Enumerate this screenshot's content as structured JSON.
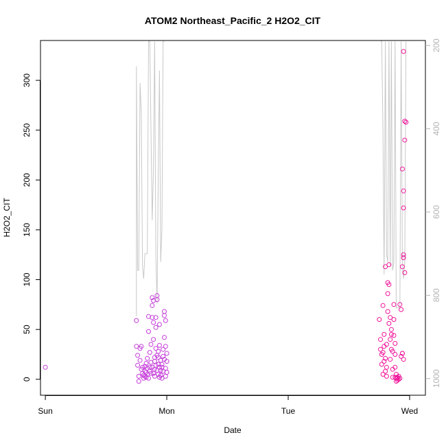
{
  "chart_data": {
    "type": "scatter",
    "title": "ATOM2 Northeast_Pacific_2 H2O2_CIT",
    "xlabel": "Date",
    "ylabel": "H2O2_CIT",
    "x_ticks": [
      {
        "label": "Sun",
        "day": 0
      },
      {
        "label": "Mon",
        "day": 1
      },
      {
        "label": "Tue",
        "day": 2
      },
      {
        "label": "Wed",
        "day": 3
      }
    ],
    "xlim": [
      -0.04,
      3.13
    ],
    "ylim": [
      -16,
      340
    ],
    "y_ticks": [
      0,
      50,
      100,
      150,
      200,
      250,
      300
    ],
    "secondary_axis": {
      "label": "",
      "ticks": [
        200,
        400,
        600,
        800,
        1000
      ],
      "ylim_reversed": [
        1040,
        188
      ],
      "color": "#b3b3b3"
    },
    "colors": {
      "early_points": "#c43bd9",
      "late_points": "#f0149a",
      "profile_line": "#c8c8c8",
      "axis": "#000000",
      "secondary_axis": "#b3b3b3"
    },
    "series": [
      {
        "points": [
          [
            0.0,
            12
          ],
          [
            0.75,
            59
          ],
          [
            0.75,
            33
          ],
          [
            0.76,
            24
          ],
          [
            0.76,
            14
          ],
          [
            0.77,
            3
          ],
          [
            0.77,
            -2
          ],
          [
            0.78,
            19
          ],
          [
            0.78,
            31
          ],
          [
            0.79,
            33
          ],
          [
            0.79,
            10
          ],
          [
            0.8,
            12
          ],
          [
            0.8,
            6
          ],
          [
            0.81,
            1
          ],
          [
            0.81,
            4
          ],
          [
            0.82,
            13
          ],
          [
            0.82,
            8
          ],
          [
            0.83,
            2
          ],
          [
            0.83,
            16
          ],
          [
            0.84,
            21
          ],
          [
            0.84,
            5
          ],
          [
            0.85,
            63
          ],
          [
            0.85,
            48
          ],
          [
            0.86,
            12
          ],
          [
            0.86,
            27
          ],
          [
            0.87,
            35
          ],
          [
            0.87,
            6
          ],
          [
            0.88,
            82
          ],
          [
            0.88,
            74
          ],
          [
            0.88,
            62
          ],
          [
            0.89,
            79
          ],
          [
            0.89,
            57
          ],
          [
            0.89,
            40
          ],
          [
            0.9,
            18
          ],
          [
            0.9,
            10
          ],
          [
            0.9,
            3
          ],
          [
            0.91,
            62
          ],
          [
            0.91,
            52
          ],
          [
            0.91,
            31
          ],
          [
            0.92,
            80
          ],
          [
            0.92,
            84
          ],
          [
            0.92,
            24
          ],
          [
            0.93,
            22
          ],
          [
            0.93,
            15
          ],
          [
            0.93,
            5
          ],
          [
            0.94,
            55
          ],
          [
            0.94,
            34
          ],
          [
            0.94,
            2
          ],
          [
            0.95,
            19
          ],
          [
            0.95,
            9
          ],
          [
            0.96,
            1
          ],
          [
            0.96,
            12
          ],
          [
            0.97,
            23
          ],
          [
            0.97,
            30
          ],
          [
            0.98,
            64
          ],
          [
            0.98,
            68
          ],
          [
            0.98,
            42
          ],
          [
            0.99,
            59
          ],
          [
            0.99,
            33
          ],
          [
            0.99,
            11
          ],
          [
            1.0,
            7
          ],
          [
            1.0,
            18
          ],
          [
            1.0,
            26
          ],
          [
            0.86,
            8
          ],
          [
            0.87,
            17
          ],
          [
            0.88,
            12
          ],
          [
            0.89,
            6
          ],
          [
            0.9,
            22
          ],
          [
            0.91,
            14
          ],
          [
            0.92,
            9
          ],
          [
            0.93,
            28
          ],
          [
            0.94,
            12
          ],
          [
            0.95,
            4
          ],
          [
            0.96,
            15
          ],
          [
            0.97,
            8
          ],
          [
            0.98,
            20
          ],
          [
            0.99,
            3
          ],
          [
            0.84,
            11
          ],
          [
            0.83,
            7
          ],
          [
            0.82,
            3
          ],
          [
            0.85,
            1
          ]
        ]
      },
      {
        "points": [
          [
            2.75,
            60
          ],
          [
            2.76,
            40
          ],
          [
            2.76,
            30
          ],
          [
            2.77,
            25
          ],
          [
            2.77,
            15
          ],
          [
            2.78,
            5
          ],
          [
            2.78,
            74
          ],
          [
            2.79,
            45
          ],
          [
            2.79,
            33
          ],
          [
            2.8,
            113
          ],
          [
            2.8,
            21
          ],
          [
            2.81,
            12
          ],
          [
            2.81,
            3
          ],
          [
            2.82,
            97
          ],
          [
            2.82,
            86
          ],
          [
            2.82,
            68
          ],
          [
            2.83,
            115
          ],
          [
            2.83,
            95
          ],
          [
            2.83,
            56
          ],
          [
            2.84,
            62
          ],
          [
            2.84,
            40
          ],
          [
            2.84,
            20
          ],
          [
            2.85,
            45
          ],
          [
            2.85,
            30
          ],
          [
            2.86,
            10
          ],
          [
            2.86,
            2
          ],
          [
            2.87,
            75
          ],
          [
            2.87,
            60
          ],
          [
            2.87,
            44
          ],
          [
            2.88,
            36
          ],
          [
            2.88,
            25
          ],
          [
            2.88,
            12
          ],
          [
            2.89,
            5
          ],
          [
            2.89,
            1
          ],
          [
            2.9,
            -1
          ],
          [
            2.9,
            2
          ],
          [
            2.91,
            0
          ],
          [
            2.91,
            3
          ],
          [
            2.92,
            1
          ],
          [
            2.92,
            75
          ],
          [
            2.93,
            70
          ],
          [
            2.93,
            23
          ],
          [
            2.94,
            26
          ],
          [
            2.94,
            26
          ],
          [
            2.95,
            20
          ],
          [
            2.94,
            113
          ],
          [
            2.95,
            125
          ],
          [
            2.95,
            122
          ],
          [
            2.96,
            107
          ],
          [
            2.94,
            211
          ],
          [
            2.95,
            189
          ],
          [
            2.95,
            172
          ],
          [
            2.96,
            240
          ],
          [
            2.96,
            259
          ],
          [
            2.97,
            258
          ],
          [
            2.95,
            329
          ],
          [
            2.78,
            27
          ],
          [
            2.79,
            18
          ],
          [
            2.8,
            8
          ],
          [
            2.81,
            35
          ],
          [
            2.85,
            50
          ],
          [
            2.86,
            28
          ],
          [
            2.88,
            2
          ],
          [
            2.89,
            -2
          ],
          [
            2.9,
            1
          ]
        ]
      }
    ],
    "profile_line": {
      "segments": [
        [
          [
            0.75,
            850
          ],
          [
            0.75,
            250
          ],
          [
            0.76,
            740
          ],
          [
            0.77,
            740
          ],
          [
            0.78,
            290
          ],
          [
            0.79,
            360
          ],
          [
            0.8,
            730
          ],
          [
            0.81,
            760
          ],
          [
            0.82,
            700
          ],
          [
            0.83,
            700
          ],
          [
            0.84,
            700
          ],
          [
            0.85,
            190
          ],
          [
            0.86,
            190
          ],
          [
            0.87,
            400
          ],
          [
            0.88,
            620
          ],
          [
            0.89,
            500
          ],
          [
            0.9,
            190
          ],
          [
            0.91,
            700
          ],
          [
            0.92,
            820
          ],
          [
            0.93,
            500
          ],
          [
            0.94,
            260
          ],
          [
            0.95,
            720
          ],
          [
            0.96,
            640
          ],
          [
            0.97,
            190
          ],
          [
            0.98,
            190
          ]
        ],
        [
          [
            2.76,
            190
          ],
          [
            2.77,
            190
          ],
          [
            2.78,
            400
          ],
          [
            2.79,
            750
          ],
          [
            2.8,
            190
          ],
          [
            2.81,
            700
          ],
          [
            2.82,
            720
          ],
          [
            2.83,
            190
          ],
          [
            2.84,
            730
          ],
          [
            2.85,
            190
          ],
          [
            2.86,
            740
          ],
          [
            2.87,
            720
          ],
          [
            2.88,
            190
          ],
          [
            2.89,
            830
          ],
          [
            2.9,
            830
          ],
          [
            2.91,
            830
          ],
          [
            2.92,
            830
          ],
          [
            2.93,
            190
          ],
          [
            2.94,
            720
          ],
          [
            2.95,
            760
          ],
          [
            2.96,
            720
          ],
          [
            2.97,
            190
          ]
        ]
      ]
    }
  }
}
